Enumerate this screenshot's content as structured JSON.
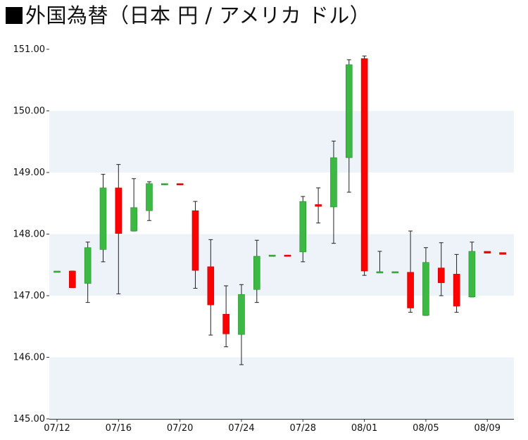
{
  "title": "外国為替（日本 円 / アメリカ ドル）",
  "colors": {
    "up": "#3cb943",
    "down": "#ff0000",
    "band": "#eef3f9",
    "axis": "#333333"
  },
  "chart_data": {
    "type": "candlestick",
    "title": "外国為替（日本 円 / アメリカ ドル）",
    "ylim": [
      145.0,
      151.0
    ],
    "yticks": [
      "145.00",
      "146.00",
      "147.00",
      "148.00",
      "149.00",
      "150.00",
      "151.00"
    ],
    "xticks": [
      "07/12",
      "07/16",
      "07/20",
      "07/24",
      "07/28",
      "08/01",
      "08/05",
      "08/09"
    ],
    "grid": "alternating horizontal bands",
    "series": [
      {
        "date": "07/12",
        "open": 147.4,
        "high": 147.4,
        "low": 147.4,
        "close": 147.4
      },
      {
        "date": "07/13",
        "open": 147.4,
        "high": 147.4,
        "low": 147.13,
        "close": 147.13
      },
      {
        "date": "07/14",
        "open": 147.2,
        "high": 147.87,
        "low": 146.89,
        "close": 147.78
      },
      {
        "date": "07/15",
        "open": 147.75,
        "high": 148.97,
        "low": 147.55,
        "close": 148.75
      },
      {
        "date": "07/16",
        "open": 148.75,
        "high": 149.13,
        "low": 147.03,
        "close": 148.01
      },
      {
        "date": "07/17",
        "open": 148.05,
        "high": 148.9,
        "low": 148.05,
        "close": 148.43
      },
      {
        "date": "07/18",
        "open": 148.38,
        "high": 148.85,
        "low": 148.22,
        "close": 148.82
      },
      {
        "date": "07/19",
        "open": 148.82,
        "high": 148.82,
        "low": 148.82,
        "close": 148.82
      },
      {
        "date": "07/20",
        "open": 148.82,
        "high": 148.82,
        "low": 148.81,
        "close": 148.81
      },
      {
        "date": "07/21",
        "open": 148.38,
        "high": 148.53,
        "low": 147.12,
        "close": 147.41
      },
      {
        "date": "07/22",
        "open": 147.47,
        "high": 147.91,
        "low": 146.36,
        "close": 146.85
      },
      {
        "date": "07/23",
        "open": 146.7,
        "high": 147.16,
        "low": 146.17,
        "close": 146.38
      },
      {
        "date": "07/24",
        "open": 146.37,
        "high": 147.18,
        "low": 145.88,
        "close": 147.02
      },
      {
        "date": "07/25",
        "open": 147.1,
        "high": 147.9,
        "low": 146.89,
        "close": 147.64
      },
      {
        "date": "07/26",
        "open": 147.64,
        "high": 147.66,
        "low": 147.63,
        "close": 147.66
      },
      {
        "date": "07/27",
        "open": 147.66,
        "high": 147.66,
        "low": 147.62,
        "close": 147.65
      },
      {
        "date": "07/28",
        "open": 147.71,
        "high": 148.61,
        "low": 147.55,
        "close": 148.53
      },
      {
        "date": "07/29",
        "open": 148.48,
        "high": 148.75,
        "low": 148.18,
        "close": 148.45
      },
      {
        "date": "07/30",
        "open": 148.44,
        "high": 149.51,
        "low": 147.85,
        "close": 149.24
      },
      {
        "date": "07/31",
        "open": 149.24,
        "high": 150.83,
        "low": 148.68,
        "close": 150.75
      },
      {
        "date": "08/01",
        "open": 150.85,
        "high": 150.89,
        "low": 147.33,
        "close": 147.4
      },
      {
        "date": "08/02",
        "open": 147.39,
        "high": 147.72,
        "low": 147.38,
        "close": 147.39
      },
      {
        "date": "08/03",
        "open": 147.38,
        "high": 147.39,
        "low": 147.38,
        "close": 147.39
      },
      {
        "date": "08/04",
        "open": 147.38,
        "high": 148.05,
        "low": 146.73,
        "close": 146.8
      },
      {
        "date": "08/05",
        "open": 146.68,
        "high": 147.78,
        "low": 146.68,
        "close": 147.54
      },
      {
        "date": "08/06",
        "open": 147.45,
        "high": 147.86,
        "low": 147.0,
        "close": 147.21
      },
      {
        "date": "08/07",
        "open": 147.35,
        "high": 147.67,
        "low": 146.73,
        "close": 146.83
      },
      {
        "date": "08/08",
        "open": 146.98,
        "high": 147.87,
        "low": 146.98,
        "close": 147.72
      },
      {
        "date": "08/09",
        "open": 147.72,
        "high": 147.72,
        "low": 147.69,
        "close": 147.69
      },
      {
        "date": "08/10",
        "open": 147.7,
        "high": 147.7,
        "low": 147.66,
        "close": 147.67
      }
    ]
  }
}
